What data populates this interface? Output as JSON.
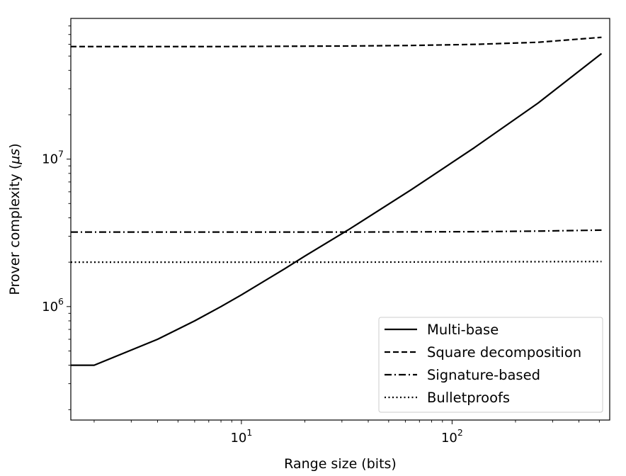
{
  "chart_data": {
    "type": "line",
    "xlabel": "Range size (bits)",
    "ylabel_prefix": "Prover complexity (",
    "ylabel_mu": "μs",
    "ylabel_suffix": ")",
    "x_scale": "log",
    "y_scale": "log",
    "xlim": [
      1.55,
      560
    ],
    "ylim": [
      170000,
      90000000
    ],
    "x_ticks": [
      {
        "value": 10,
        "base": "10",
        "exp": "1"
      },
      {
        "value": 100,
        "base": "10",
        "exp": "2"
      }
    ],
    "y_ticks": [
      {
        "value": 1000000,
        "base": "10",
        "exp": "6"
      },
      {
        "value": 10000000,
        "base": "10",
        "exp": "7"
      }
    ],
    "grid": false,
    "legend_position": "lower-right",
    "series": [
      {
        "name": "Multi-base",
        "style": "solid",
        "x": [
          1.55,
          2,
          4,
          6,
          8,
          10,
          16,
          20,
          32,
          64,
          128,
          256,
          512
        ],
        "y": [
          400000,
          400000,
          600000,
          800000,
          1000000,
          1200000,
          1800000,
          2200000,
          3300000,
          6200000,
          12000000,
          24000000,
          52000000
        ]
      },
      {
        "name": "Square decomposition",
        "style": "dashed",
        "x": [
          1.55,
          2,
          8,
          32,
          64,
          128,
          256,
          512
        ],
        "y": [
          58000000,
          58000000,
          58000000,
          58500000,
          59000000,
          60000000,
          62000000,
          67000000
        ]
      },
      {
        "name": "Signature-based",
        "style": "dashdot",
        "x": [
          1.55,
          2,
          8,
          32,
          128,
          256,
          512
        ],
        "y": [
          3200000,
          3200000,
          3200000,
          3200000,
          3220000,
          3250000,
          3300000
        ]
      },
      {
        "name": "Bulletproofs",
        "style": "dotted",
        "x": [
          1.55,
          2,
          8,
          32,
          128,
          512
        ],
        "y": [
          2000000,
          2000000,
          2000000,
          2000000,
          2010000,
          2020000
        ]
      }
    ]
  }
}
